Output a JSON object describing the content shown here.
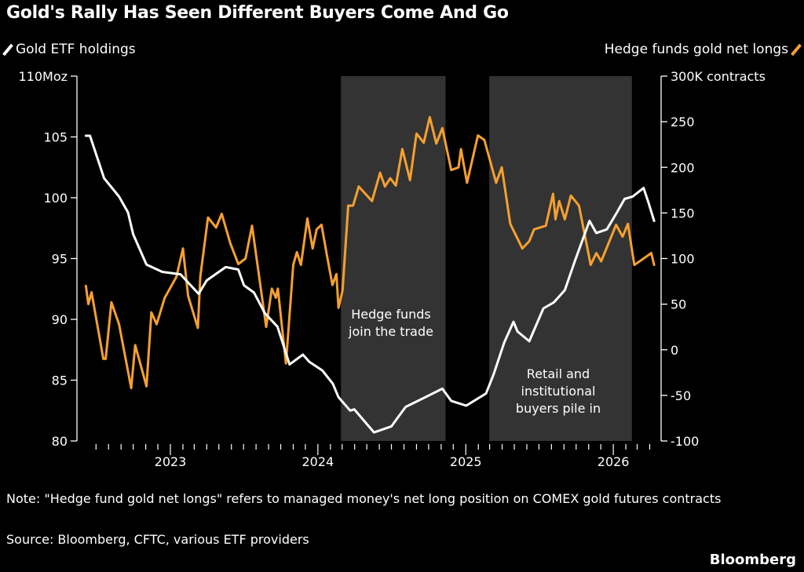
{
  "title": "Gold's Rally Has Seen Different Buyers Come And Go",
  "note": "Note: \"Hedge fund gold net longs\" refers to managed money's net long position on COMEX gold futures contracts",
  "source": "Source: Bloomberg, CFTC, various ETF providers",
  "brand": "Bloomberg",
  "colors": {
    "etf": "#ffffff",
    "hedge": "#f5a030",
    "shade": "#333333",
    "background": "#000000"
  },
  "chart_data": {
    "type": "line",
    "title": "Gold's Rally Has Seen Different Buyers Come And Go",
    "grid": false,
    "legend": [
      {
        "label": "Gold ETF holdings",
        "position": "top-left",
        "axis": "left"
      },
      {
        "label": "Hedge funds gold net longs",
        "position": "top-right",
        "axis": "right"
      }
    ],
    "x_ticks": [
      "2023",
      "2024",
      "2025",
      "2026"
    ],
    "left_axis": {
      "unit_label": "110Moz",
      "ticks": [
        "110Moz",
        "105",
        "100",
        "95",
        "90",
        "85",
        "80"
      ],
      "ylim": [
        80,
        110
      ]
    },
    "right_axis": {
      "unit_label": "300K contracts",
      "ticks": [
        "300K contracts",
        "250",
        "200",
        "150",
        "100",
        "50",
        "0",
        "-50",
        "-100"
      ],
      "ylim": [
        -100,
        300
      ]
    },
    "shaded_periods": [
      {
        "start": "2024-02-27",
        "end": "2024-11-12",
        "label": "Hedge funds join the trade"
      },
      {
        "start": "2025-02-28",
        "end": "2026-02-16",
        "label": "Retail and institutional buyers pile in"
      }
    ],
    "series": [
      {
        "name": "Gold ETF holdings",
        "axis": "left",
        "color": "#ffffff",
        "points": [
          [
            "2022-06-06",
            105.1
          ],
          [
            "2022-06-16",
            105.1
          ],
          [
            "2022-07-21",
            101.6
          ],
          [
            "2022-08-27",
            100.1
          ],
          [
            "2022-09-18",
            98.8
          ],
          [
            "2022-10-01",
            97.0
          ],
          [
            "2022-11-03",
            94.5
          ],
          [
            "2022-12-12",
            93.9
          ],
          [
            "2023-01-26",
            93.7
          ],
          [
            "2023-03-12",
            92.1
          ],
          [
            "2023-04-01",
            93.2
          ],
          [
            "2023-05-18",
            94.3
          ],
          [
            "2023-06-18",
            94.1
          ],
          [
            "2023-07-02",
            92.8
          ],
          [
            "2023-07-27",
            92.2
          ],
          [
            "2023-08-23",
            90.5
          ],
          [
            "2023-09-23",
            89.4
          ],
          [
            "2023-10-23",
            86.3
          ],
          [
            "2023-11-25",
            87.1
          ],
          [
            "2023-12-11",
            86.5
          ],
          [
            "2024-01-12",
            85.8
          ],
          [
            "2024-02-07",
            84.7
          ],
          [
            "2024-02-21",
            83.6
          ],
          [
            "2024-03-21",
            82.5
          ],
          [
            "2024-03-31",
            82.6
          ],
          [
            "2024-05-19",
            80.7
          ],
          [
            "2024-07-01",
            81.2
          ],
          [
            "2024-08-05",
            82.8
          ],
          [
            "2024-09-23",
            83.6
          ],
          [
            "2024-11-04",
            84.3
          ],
          [
            "2024-11-26",
            83.3
          ],
          [
            "2025-01-02",
            82.9
          ],
          [
            "2025-02-20",
            83.9
          ],
          [
            "2025-03-11",
            85.5
          ],
          [
            "2025-04-06",
            88.1
          ],
          [
            "2025-04-29",
            89.8
          ],
          [
            "2025-05-09",
            89.0
          ],
          [
            "2025-06-07",
            88.2
          ],
          [
            "2025-07-12",
            90.9
          ],
          [
            "2025-08-07",
            91.4
          ],
          [
            "2025-09-03",
            92.4
          ],
          [
            "2025-09-28",
            94.8
          ],
          [
            "2025-11-03",
            98.1
          ],
          [
            "2025-11-20",
            97.1
          ],
          [
            "2025-12-16",
            97.4
          ],
          [
            "2026-01-10",
            98.8
          ],
          [
            "2026-01-29",
            99.9
          ],
          [
            "2026-02-18",
            100.1
          ],
          [
            "2026-03-17",
            100.8
          ],
          [
            "2026-03-29",
            99.6
          ],
          [
            "2026-04-12",
            98.1
          ]
        ]
      },
      {
        "name": "Hedge funds gold net longs",
        "axis": "right",
        "color": "#f5a030",
        "points": [
          [
            "2022-06-06",
            70
          ],
          [
            "2022-06-12",
            50
          ],
          [
            "2022-06-20",
            63
          ],
          [
            "2022-07-19",
            -10
          ],
          [
            "2022-07-25",
            -10
          ],
          [
            "2022-08-08",
            52
          ],
          [
            "2022-08-27",
            28
          ],
          [
            "2022-09-26",
            -42
          ],
          [
            "2022-10-06",
            5
          ],
          [
            "2022-11-03",
            -40
          ],
          [
            "2022-11-15",
            41
          ],
          [
            "2022-11-28",
            28
          ],
          [
            "2022-12-18",
            57
          ],
          [
            "2023-01-16",
            80
          ],
          [
            "2023-02-01",
            111
          ],
          [
            "2023-02-14",
            59
          ],
          [
            "2023-03-10",
            24
          ],
          [
            "2023-03-16",
            80
          ],
          [
            "2023-04-04",
            145
          ],
          [
            "2023-04-24",
            134
          ],
          [
            "2023-05-08",
            149
          ],
          [
            "2023-05-29",
            117
          ],
          [
            "2023-06-18",
            94
          ],
          [
            "2023-07-06",
            100
          ],
          [
            "2023-07-22",
            136
          ],
          [
            "2023-08-26",
            25
          ],
          [
            "2023-09-09",
            67
          ],
          [
            "2023-09-19",
            57
          ],
          [
            "2023-09-24",
            67
          ],
          [
            "2023-10-14",
            -15
          ],
          [
            "2023-11-01",
            93
          ],
          [
            "2023-11-10",
            107
          ],
          [
            "2023-11-20",
            93
          ],
          [
            "2023-12-06",
            144
          ],
          [
            "2023-12-19",
            111
          ],
          [
            "2023-12-29",
            132
          ],
          [
            "2024-01-10",
            137
          ],
          [
            "2024-01-24",
            102
          ],
          [
            "2024-02-06",
            71
          ],
          [
            "2024-02-16",
            83
          ],
          [
            "2024-02-21",
            46
          ],
          [
            "2024-03-02",
            65
          ],
          [
            "2024-03-16",
            158
          ],
          [
            "2024-03-28",
            158
          ],
          [
            "2024-04-11",
            179
          ],
          [
            "2024-05-14",
            163
          ],
          [
            "2024-06-03",
            194
          ],
          [
            "2024-06-15",
            179
          ],
          [
            "2024-06-28",
            188
          ],
          [
            "2024-07-12",
            180
          ],
          [
            "2024-07-28",
            220
          ],
          [
            "2024-08-16",
            186
          ],
          [
            "2024-09-01",
            237
          ],
          [
            "2024-09-19",
            227
          ],
          [
            "2024-10-04",
            255
          ],
          [
            "2024-10-20",
            226
          ],
          [
            "2024-11-04",
            243
          ],
          [
            "2024-11-26",
            197
          ],
          [
            "2024-12-14",
            200
          ],
          [
            "2024-12-20",
            220
          ],
          [
            "2025-01-04",
            183
          ],
          [
            "2025-01-31",
            235
          ],
          [
            "2025-02-16",
            230
          ],
          [
            "2025-03-17",
            183
          ],
          [
            "2025-03-31",
            200
          ],
          [
            "2025-04-21",
            138
          ],
          [
            "2025-05-21",
            111
          ],
          [
            "2025-06-07",
            119
          ],
          [
            "2025-06-19",
            132
          ],
          [
            "2025-07-18",
            136
          ],
          [
            "2025-08-05",
            171
          ],
          [
            "2025-08-11",
            143
          ],
          [
            "2025-08-20",
            163
          ],
          [
            "2025-09-03",
            143
          ],
          [
            "2025-09-18",
            169
          ],
          [
            "2025-10-08",
            158
          ],
          [
            "2025-11-06",
            93
          ],
          [
            "2025-11-20",
            106
          ],
          [
            "2025-12-02",
            97
          ],
          [
            "2026-01-08",
            137
          ],
          [
            "2026-01-24",
            124
          ],
          [
            "2026-02-06",
            138
          ],
          [
            "2026-02-22",
            93
          ],
          [
            "2026-03-17",
            100
          ],
          [
            "2026-04-05",
            106
          ],
          [
            "2026-04-12",
            93
          ]
        ]
      }
    ]
  }
}
